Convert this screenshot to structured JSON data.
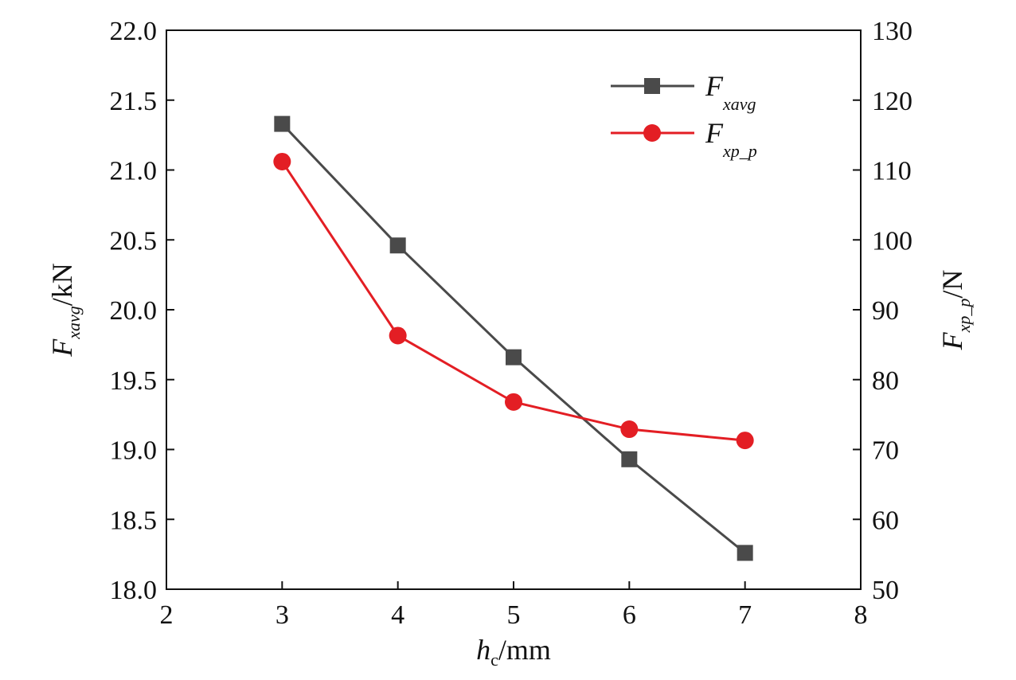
{
  "chart_data": {
    "type": "line",
    "x": [
      3,
      4,
      5,
      6,
      7
    ],
    "xlim": [
      2,
      8
    ],
    "x_ticks": [
      "2",
      "3",
      "4",
      "5",
      "6",
      "7",
      "8"
    ],
    "y_left_lim": [
      18.0,
      22.0
    ],
    "y_left_ticks": [
      "18.0",
      "18.5",
      "19.0",
      "19.5",
      "20.0",
      "20.5",
      "21.0",
      "21.5",
      "22.0"
    ],
    "y_right_lim": [
      50,
      130
    ],
    "y_right_ticks": [
      "50",
      "60",
      "70",
      "80",
      "90",
      "100",
      "110",
      "120",
      "130"
    ],
    "xlabel": {
      "main": "h",
      "sub": "c",
      "unit": "/mm"
    },
    "ylabel_left": {
      "main": "F",
      "sub": "xavg",
      "unit": "/kN"
    },
    "ylabel_right": {
      "main": "F",
      "sub": "xp_p",
      "unit": "/N"
    },
    "grid": false,
    "legend_position": "top-right",
    "series": [
      {
        "name": "F",
        "name_sub": "xavg",
        "axis": "left",
        "marker": "square",
        "color": "#4a4a4a",
        "values": [
          21.33,
          20.46,
          19.66,
          18.93,
          18.26
        ]
      },
      {
        "name": "F",
        "name_sub": "xp_p",
        "axis": "right",
        "marker": "circle",
        "color": "#e31e24",
        "values": [
          111.2,
          86.3,
          76.8,
          72.9,
          71.3
        ]
      }
    ]
  }
}
